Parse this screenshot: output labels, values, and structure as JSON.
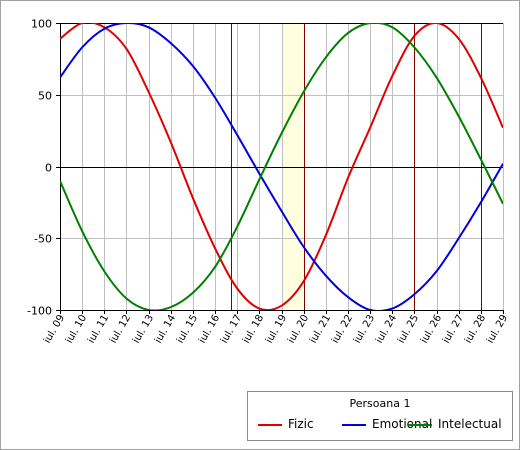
{
  "chart_data": {
    "type": "line",
    "title": "",
    "xlabel": "",
    "ylabel": "",
    "ylim": [
      -100,
      100
    ],
    "yticks": [
      100,
      50,
      0,
      -50,
      -100
    ],
    "x_ticks": [
      "iul. 09",
      "iul. 10",
      "iul. 11",
      "iul. 12",
      "iul. 13",
      "iul. 14",
      "iul. 15",
      "iul. 16",
      "iul. 17",
      "iul. 18",
      "iul. 19",
      "iul. 20",
      "iul. 21",
      "iul. 22",
      "iul. 23",
      "iul. 24",
      "iul. 25",
      "iul. 26",
      "iul. 27",
      "iul. 28",
      "iul. 29"
    ],
    "x": [
      9,
      10,
      11,
      12,
      13,
      14,
      15,
      16,
      17,
      18,
      19,
      20,
      21,
      22,
      23,
      24,
      25,
      26,
      27,
      28,
      29
    ],
    "grid": true,
    "highlight_band": {
      "from": 19,
      "to": 20,
      "color": "#ffffe0"
    },
    "vertical_markers": [
      16.7,
      20,
      25,
      28
    ],
    "series": [
      {
        "name": "Fizic",
        "color": "#e00000",
        "values": [
          89,
          100,
          97,
          82,
          52,
          17,
          -22,
          -57,
          -85,
          -99,
          -97,
          -80,
          -48,
          -8,
          27,
          63,
          91,
          100,
          89,
          62,
          27
        ]
      },
      {
        "name": "Emotional",
        "color": "#0000e0",
        "values": [
          62,
          83,
          96,
          100,
          97,
          86,
          70,
          48,
          22,
          -5,
          -31,
          -56,
          -76,
          -91,
          -100,
          -99,
          -89,
          -73,
          -50,
          -25,
          2
        ]
      },
      {
        "name": "Intelectual",
        "color": "#008000",
        "values": [
          -10,
          -45,
          -73,
          -92,
          -100,
          -98,
          -88,
          -70,
          -42,
          -9,
          23,
          52,
          76,
          93,
          100,
          97,
          83,
          62,
          35,
          5,
          -26
        ]
      }
    ],
    "legend": {
      "title": "Persoana 1",
      "placement": "bottom-right"
    }
  }
}
